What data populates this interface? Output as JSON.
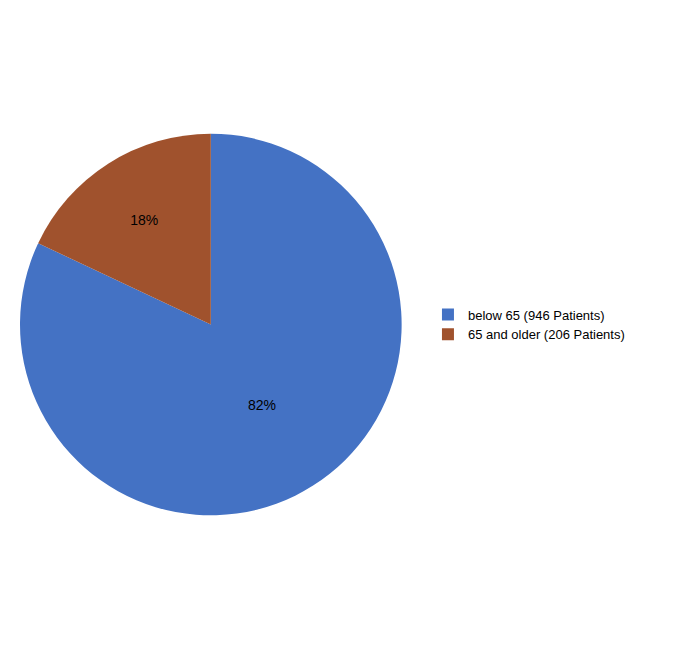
{
  "chart_data": {
    "type": "pie",
    "categories": [
      "below 65 (946 Patients)",
      "65 and older (206 Patients)"
    ],
    "values": [
      82,
      18
    ],
    "value_labels": [
      "82%",
      "18%"
    ],
    "colors": [
      "#4472C4",
      "#A0522D"
    ],
    "data_labels": true,
    "legend": "right"
  }
}
